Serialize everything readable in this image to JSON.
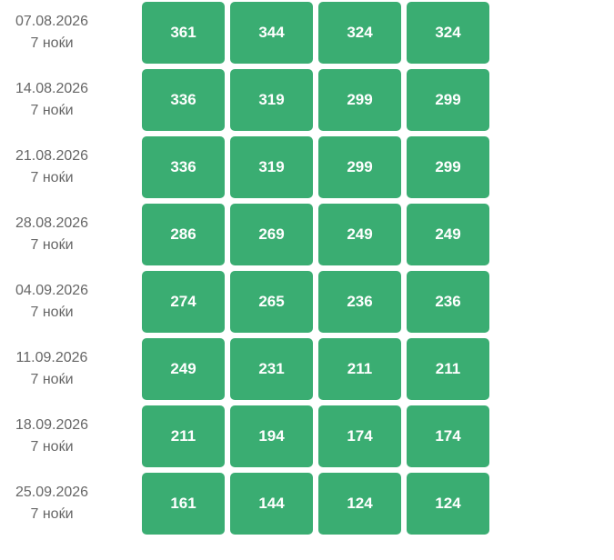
{
  "rows": [
    {
      "date": "07.08.2026",
      "nights": "7 ноќи",
      "prices": [
        "361",
        "344",
        "324",
        "324"
      ]
    },
    {
      "date": "14.08.2026",
      "nights": "7 ноќи",
      "prices": [
        "336",
        "319",
        "299",
        "299"
      ]
    },
    {
      "date": "21.08.2026",
      "nights": "7 ноќи",
      "prices": [
        "336",
        "319",
        "299",
        "299"
      ]
    },
    {
      "date": "28.08.2026",
      "nights": "7 ноќи",
      "prices": [
        "286",
        "269",
        "249",
        "249"
      ]
    },
    {
      "date": "04.09.2026",
      "nights": "7 ноќи",
      "prices": [
        "274",
        "265",
        "236",
        "236"
      ]
    },
    {
      "date": "11.09.2026",
      "nights": "7 ноќи",
      "prices": [
        "249",
        "231",
        "211",
        "211"
      ]
    },
    {
      "date": "18.09.2026",
      "nights": "7 ноќи",
      "prices": [
        "211",
        "194",
        "174",
        "174"
      ]
    },
    {
      "date": "25.09.2026",
      "nights": "7 ноќи",
      "prices": [
        "161",
        "144",
        "124",
        "124"
      ]
    }
  ],
  "colors": {
    "cell": "#3aad72",
    "text": "#666666"
  }
}
